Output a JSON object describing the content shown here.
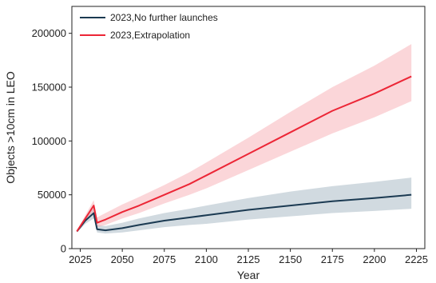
{
  "chart_data": {
    "type": "line",
    "xlabel": "Year",
    "ylabel": "Objects >10cm in LEO",
    "xlim": [
      2020,
      2230
    ],
    "ylim": [
      0,
      225000
    ],
    "x_ticks": [
      2025,
      2050,
      2075,
      2100,
      2125,
      2150,
      2175,
      2200,
      2225
    ],
    "y_ticks": [
      0,
      50000,
      100000,
      150000,
      200000
    ],
    "x_tick_labels": [
      "2025",
      "2050",
      "2075",
      "2100",
      "2125",
      "2150",
      "2175",
      "2200",
      "2225"
    ],
    "y_tick_labels": [
      "0",
      "50000",
      "100000",
      "150000",
      "200000"
    ],
    "grid": false,
    "legend_position": "top-left",
    "series": [
      {
        "name": "2023,No further launches",
        "color": "#1b3a52",
        "band_color": "#9aaebb",
        "x": [
          2023,
          2028,
          2033,
          2035,
          2040,
          2050,
          2060,
          2075,
          2090,
          2100,
          2125,
          2150,
          2175,
          2200,
          2222
        ],
        "y": [
          16000,
          26000,
          33000,
          18000,
          17000,
          19000,
          22000,
          26000,
          29000,
          31000,
          36000,
          40000,
          44000,
          47000,
          50000
        ],
        "band_low": [
          15000,
          23000,
          28000,
          15000,
          14000,
          15000,
          17000,
          20000,
          22000,
          23000,
          27000,
          30000,
          33000,
          35000,
          37000
        ],
        "band_high": [
          17000,
          29000,
          38000,
          22000,
          21000,
          24000,
          28000,
          33000,
          37000,
          40000,
          47000,
          53000,
          58000,
          62000,
          66000
        ]
      },
      {
        "name": "2023,Extrapolation",
        "color": "#ec2636",
        "band_color": "#f6a3aa",
        "x": [
          2023,
          2028,
          2033,
          2035,
          2040,
          2050,
          2060,
          2075,
          2090,
          2100,
          2125,
          2150,
          2175,
          2200,
          2222
        ],
        "y": [
          16000,
          28000,
          40000,
          24000,
          27000,
          34000,
          40000,
          50000,
          60000,
          68000,
          88000,
          108000,
          128000,
          144000,
          160000
        ],
        "band_low": [
          15000,
          25000,
          34000,
          20000,
          22000,
          28000,
          33000,
          42000,
          50000,
          56000,
          73000,
          90000,
          107000,
          122000,
          137000
        ],
        "band_high": [
          17000,
          31000,
          45000,
          29000,
          33000,
          41000,
          48000,
          59000,
          71000,
          80000,
          103000,
          127000,
          150000,
          170000,
          190000
        ]
      }
    ]
  }
}
